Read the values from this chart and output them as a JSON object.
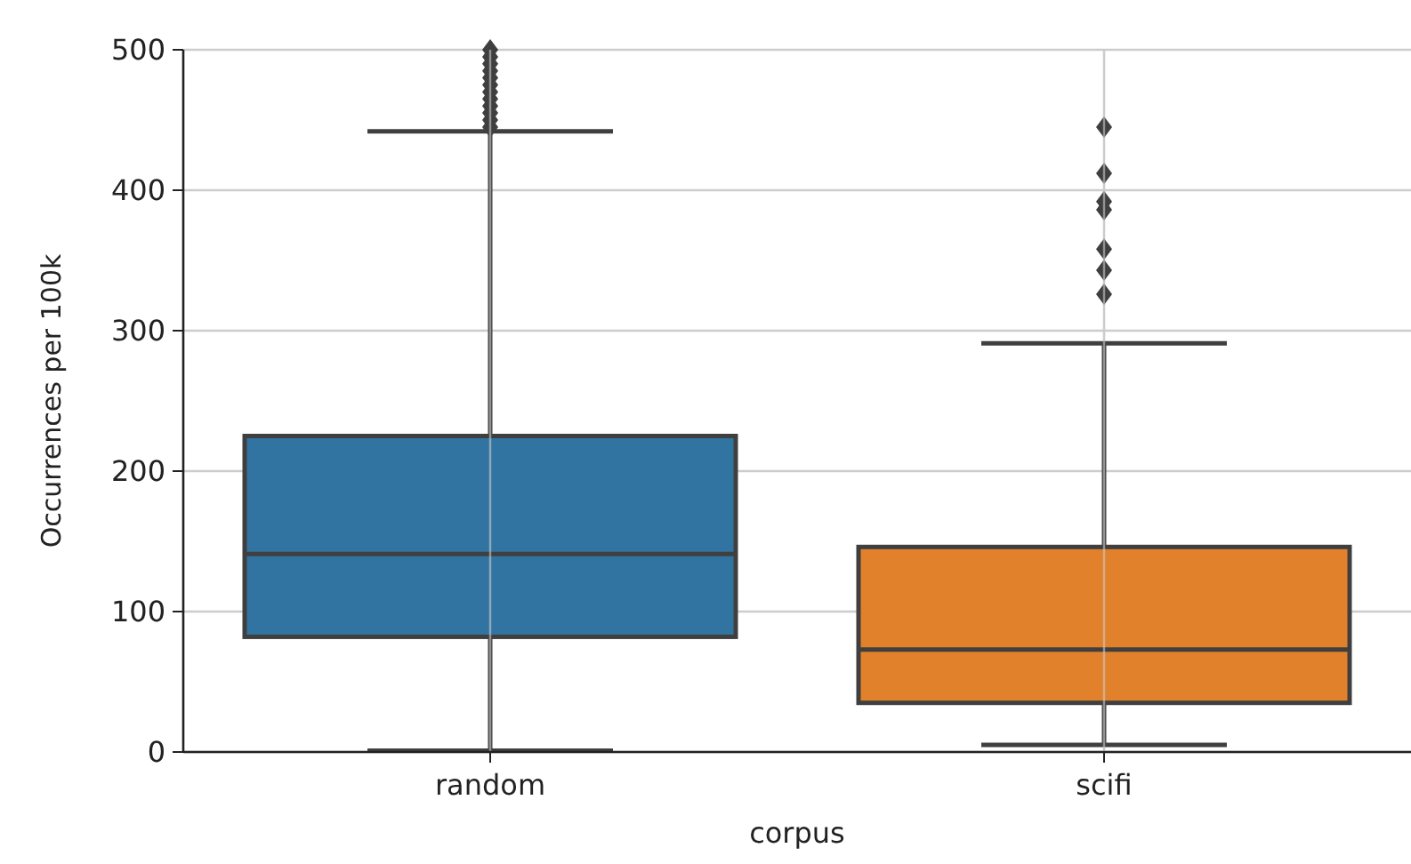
{
  "chart_data": {
    "type": "box",
    "xlabel": "corpus",
    "ylabel": "Occurrences per 100k",
    "categories": [
      "random",
      "scifi"
    ],
    "ylim": [
      0,
      500
    ],
    "yticks": [
      0,
      100,
      200,
      300,
      400,
      500
    ],
    "grid": true,
    "marker": "diamond",
    "series": [
      {
        "colors": [
          "#3274a1",
          "#e1812c"
        ],
        "boxes": [
          {
            "low": 1,
            "q1": 82,
            "median": 141,
            "q3": 225,
            "high": 442,
            "outliers": [
              445,
              450,
              455,
              460,
              465,
              470,
              475,
              480,
              485,
              490,
              495,
              500
            ]
          },
          {
            "low": 5,
            "q1": 35,
            "median": 73,
            "q3": 146,
            "high": 291,
            "outliers": [
              326,
              343,
              358,
              386,
              392,
              412,
              445
            ]
          }
        ]
      }
    ]
  }
}
